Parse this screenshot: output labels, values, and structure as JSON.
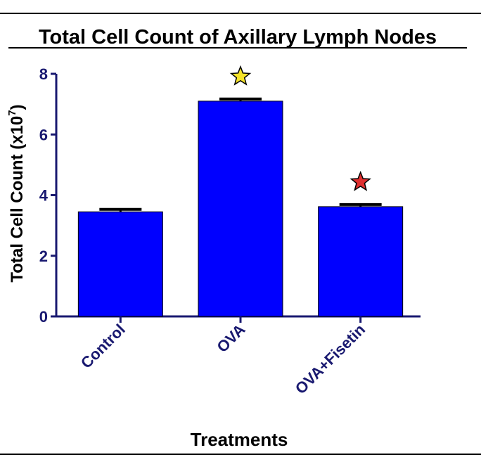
{
  "chart_data": {
    "type": "bar",
    "title": "Total Cell Count of Axillary Lymph Nodes",
    "ylabel_main": "Total Cell  Count (x10",
    "ylabel_sup": "7",
    "ylabel_close": ")",
    "xlabel": "Treatments",
    "categories": [
      "Control",
      "OVA",
      "OVA+Fisetin"
    ],
    "values": [
      3.45,
      7.1,
      3.62
    ],
    "errors": [
      0.08,
      0.07,
      0.07
    ],
    "ylim": [
      0,
      8
    ],
    "yticks": [
      "0",
      "2",
      "4",
      "6",
      "8"
    ],
    "significance_markers": [
      {
        "category": "OVA",
        "symbol": "star",
        "color": "#f5e32a"
      },
      {
        "category": "OVA+Fisetin",
        "symbol": "star",
        "color": "#e03030"
      }
    ],
    "bar_color": "#0000ff",
    "axis_text_color": "#191970"
  }
}
